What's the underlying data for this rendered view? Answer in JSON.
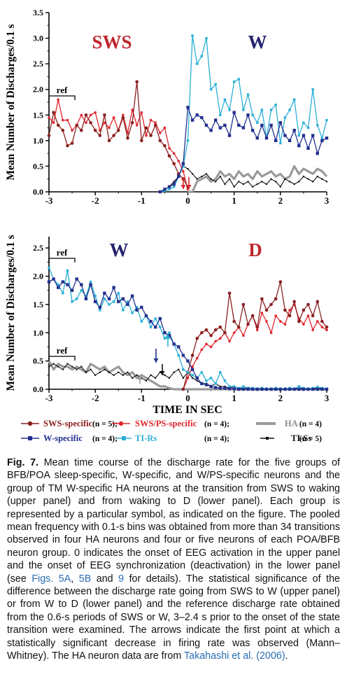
{
  "chart_data": [
    {
      "type": "line",
      "panel": "upper",
      "xlabel": "",
      "ylabel": "Mean Number of Discharges/0.1 s",
      "xlim": [
        -3,
        3
      ],
      "ylim": [
        0,
        3.5
      ],
      "x_ticks": [
        "-3",
        "-2",
        "-1",
        "0",
        "1",
        "2",
        "3"
      ],
      "y_ticks": [
        "0.0",
        "0.5",
        "1.0",
        "1.5",
        "2.0",
        "2.5",
        "3.0",
        "3.5"
      ],
      "state_labels": [
        {
          "text": "SWS",
          "color": "#c0272d"
        },
        {
          "text": "W",
          "color": "#24246e"
        }
      ],
      "ref_label": "ref",
      "x": [
        -3.0,
        -2.9,
        -2.8,
        -2.7,
        -2.6,
        -2.5,
        -2.4,
        -2.3,
        -2.2,
        -2.1,
        -2.0,
        -1.9,
        -1.8,
        -1.7,
        -1.6,
        -1.5,
        -1.4,
        -1.3,
        -1.2,
        -1.1,
        -1.0,
        -0.9,
        -0.8,
        -0.7,
        -0.6,
        -0.5,
        -0.4,
        -0.3,
        -0.2,
        -0.1,
        0.0,
        0.1,
        0.2,
        0.3,
        0.4,
        0.5,
        0.6,
        0.7,
        0.8,
        0.9,
        1.0,
        1.1,
        1.2,
        1.3,
        1.4,
        1.5,
        1.6,
        1.7,
        1.8,
        1.9,
        2.0,
        2.1,
        2.2,
        2.3,
        2.4,
        2.5,
        2.6,
        2.7,
        2.8,
        2.9,
        3.0
      ],
      "series": [
        {
          "name": "SWS-specific",
          "color": "#8b2020",
          "values": [
            1.1,
            1.55,
            1.3,
            1.2,
            0.9,
            0.95,
            1.3,
            1.2,
            1.5,
            1.35,
            1.2,
            1.1,
            1.5,
            1.0,
            1.1,
            1.2,
            1.45,
            1.05,
            1.35,
            2.15,
            1.0,
            1.25,
            1.1,
            1.3,
            1.0,
            0.9,
            0.7,
            0.55,
            0.35,
            0.25,
            0.1,
            null,
            null,
            null,
            null,
            null,
            null,
            null,
            null,
            null,
            null,
            null,
            null,
            null,
            null,
            null,
            null,
            null,
            null,
            null,
            null,
            null,
            null,
            null,
            null,
            null,
            null,
            null,
            null,
            null,
            null
          ]
        },
        {
          "name": "SWS/PS-specific",
          "color": "#e0262e",
          "values": [
            1.45,
            1.35,
            1.8,
            1.4,
            1.4,
            1.2,
            1.3,
            1.5,
            1.35,
            1.5,
            1.55,
            1.2,
            1.35,
            1.25,
            1.45,
            1.2,
            1.5,
            1.15,
            1.6,
            1.3,
            1.55,
            1.1,
            1.4,
            1.35,
            1.15,
            1.25,
            0.85,
            0.75,
            0.6,
            0.4,
            0.05,
            null,
            null,
            null,
            null,
            null,
            null,
            null,
            null,
            null,
            null,
            null,
            null,
            null,
            null,
            null,
            null,
            null,
            null,
            null,
            null,
            null,
            null,
            null,
            null,
            null,
            null,
            null,
            null,
            null,
            null
          ]
        },
        {
          "name": "W-specific",
          "color": "#23318f",
          "values": [
            null,
            null,
            null,
            null,
            null,
            null,
            null,
            null,
            null,
            null,
            null,
            null,
            null,
            null,
            null,
            null,
            null,
            null,
            null,
            null,
            null,
            null,
            null,
            null,
            0.0,
            0.05,
            0.1,
            0.15,
            0.3,
            0.55,
            1.65,
            1.4,
            1.5,
            1.45,
            1.3,
            1.2,
            1.4,
            1.25,
            1.3,
            1.1,
            1.55,
            1.3,
            1.25,
            1.5,
            1.2,
            1.05,
            1.3,
            1.05,
            1.3,
            1.0,
            1.35,
            1.1,
            1.0,
            1.2,
            0.9,
            1.1,
            0.85,
            1.1,
            0.75,
            1.0,
            1.05
          ]
        },
        {
          "name": "TI-Rs",
          "color": "#2ab0d6",
          "values": [
            null,
            null,
            null,
            null,
            null,
            null,
            null,
            null,
            null,
            null,
            null,
            null,
            null,
            null,
            null,
            null,
            null,
            null,
            null,
            null,
            null,
            null,
            null,
            null,
            0.0,
            0.02,
            0.05,
            0.1,
            0.3,
            0.5,
            1.0,
            3.05,
            2.5,
            2.65,
            3.0,
            2.0,
            2.1,
            1.5,
            1.8,
            1.6,
            2.15,
            2.2,
            1.6,
            1.9,
            1.5,
            1.35,
            1.6,
            1.05,
            1.6,
            1.7,
            0.95,
            1.45,
            1.6,
            1.8,
            1.1,
            1.35,
            1.25,
            2.0,
            1.3,
            1.05,
            1.4
          ]
        },
        {
          "name": "HA",
          "color": "#9a9a9a",
          "values": [
            null,
            null,
            null,
            null,
            null,
            null,
            null,
            null,
            null,
            null,
            null,
            null,
            null,
            null,
            null,
            null,
            null,
            null,
            null,
            null,
            null,
            null,
            null,
            null,
            null,
            null,
            null,
            null,
            null,
            null,
            0.0,
            0.0,
            0.2,
            0.25,
            0.3,
            0.2,
            0.25,
            0.4,
            0.3,
            0.35,
            0.25,
            0.4,
            0.3,
            0.35,
            0.25,
            0.4,
            0.3,
            0.35,
            0.4,
            0.3,
            0.35,
            0.25,
            0.3,
            0.5,
            0.35,
            0.45,
            0.4,
            0.35,
            0.45,
            0.4,
            0.3
          ]
        },
        {
          "name": "TI-Ss",
          "color": "#111111",
          "values": [
            null,
            null,
            null,
            null,
            null,
            null,
            null,
            null,
            null,
            null,
            null,
            null,
            null,
            null,
            null,
            null,
            null,
            null,
            null,
            null,
            null,
            null,
            null,
            null,
            0.0,
            0.05,
            0.1,
            0.2,
            0.3,
            0.5,
            0.45,
            0.35,
            0.25,
            0.3,
            0.35,
            0.25,
            0.2,
            0.3,
            0.15,
            0.25,
            0.1,
            0.2,
            0.15,
            0.2,
            0.1,
            0.15,
            0.2,
            0.15,
            0.25,
            0.2,
            0.1,
            0.25,
            0.2,
            0.15,
            0.2,
            0.3,
            0.25,
            0.2,
            0.3,
            0.25,
            0.2
          ]
        }
      ]
    },
    {
      "type": "line",
      "panel": "lower",
      "xlabel": "TIME IN SEC",
      "ylabel": "Mean Number of Discharges/0.1 s",
      "xlim": [
        -3,
        3
      ],
      "ylim": [
        0,
        2.7
      ],
      "x_ticks": [
        "-3",
        "-2",
        "-1",
        "0",
        "1",
        "2",
        "3"
      ],
      "y_ticks": [
        "0.0",
        "0.5",
        "1.0",
        "1.5",
        "2.0",
        "2.5"
      ],
      "state_labels": [
        {
          "text": "W",
          "color": "#24246e"
        },
        {
          "text": "D",
          "color": "#c0272d"
        }
      ],
      "ref_label": "ref",
      "x": [
        -3.0,
        -2.9,
        -2.8,
        -2.7,
        -2.6,
        -2.5,
        -2.4,
        -2.3,
        -2.2,
        -2.1,
        -2.0,
        -1.9,
        -1.8,
        -1.7,
        -1.6,
        -1.5,
        -1.4,
        -1.3,
        -1.2,
        -1.1,
        -1.0,
        -0.9,
        -0.8,
        -0.7,
        -0.6,
        -0.5,
        -0.4,
        -0.3,
        -0.2,
        -0.1,
        0.0,
        0.1,
        0.2,
        0.3,
        0.4,
        0.5,
        0.6,
        0.7,
        0.8,
        0.9,
        1.0,
        1.1,
        1.2,
        1.3,
        1.4,
        1.5,
        1.6,
        1.7,
        1.8,
        1.9,
        2.0,
        2.1,
        2.2,
        2.3,
        2.4,
        2.5,
        2.6,
        2.7,
        2.8,
        2.9,
        3.0
      ],
      "series": [
        {
          "name": "SWS-specific",
          "color": "#8b2020",
          "values": [
            null,
            null,
            null,
            null,
            null,
            null,
            null,
            null,
            null,
            null,
            null,
            null,
            null,
            null,
            null,
            null,
            null,
            null,
            null,
            null,
            null,
            null,
            null,
            null,
            null,
            null,
            null,
            null,
            null,
            0.0,
            0.3,
            0.6,
            0.9,
            1.0,
            1.05,
            0.95,
            1.05,
            1.1,
            1.0,
            1.7,
            1.2,
            1.1,
            1.5,
            1.15,
            1.3,
            1.1,
            1.6,
            1.4,
            1.5,
            1.6,
            1.9,
            1.4,
            1.3,
            1.55,
            1.2,
            1.4,
            1.5,
            1.3,
            1.55,
            1.2,
            1.1
          ]
        },
        {
          "name": "SWS/PS-specific",
          "color": "#e0262e",
          "values": [
            null,
            null,
            null,
            null,
            null,
            null,
            null,
            null,
            null,
            null,
            null,
            null,
            null,
            null,
            null,
            null,
            null,
            null,
            null,
            null,
            null,
            null,
            null,
            null,
            null,
            null,
            null,
            null,
            null,
            0.0,
            0.2,
            0.4,
            0.55,
            0.7,
            0.8,
            0.75,
            0.85,
            0.9,
            1.0,
            0.85,
            1.0,
            1.1,
            0.95,
            1.15,
            1.3,
            1.05,
            1.35,
            1.2,
            1.0,
            1.3,
            1.2,
            1.15,
            1.4,
            1.5,
            1.25,
            1.15,
            1.3,
            1.05,
            1.2,
            1.1,
            1.05
          ]
        },
        {
          "name": "W-specific",
          "color": "#23318f",
          "values": [
            1.9,
            1.95,
            1.8,
            1.9,
            1.85,
            1.75,
            1.95,
            1.85,
            1.6,
            1.85,
            1.55,
            1.45,
            1.7,
            1.6,
            1.8,
            1.55,
            1.6,
            1.5,
            1.65,
            1.4,
            1.45,
            1.3,
            1.2,
            1.1,
            1.25,
            1.0,
            0.95,
            0.8,
            0.75,
            0.6,
            0.5,
            0.35,
            0.2,
            0.1,
            0.08,
            0.05,
            0.03,
            0.02,
            0.02,
            0.01,
            0.01,
            0.0,
            0.0,
            0.0,
            0.0,
            0.0,
            0.0,
            0.0,
            0.0,
            0.0,
            0.0,
            0.0,
            0.0,
            0.0,
            0.0,
            0.0,
            0.0,
            0.0,
            0.0,
            0.0,
            0.0
          ]
        },
        {
          "name": "TI-Rs",
          "color": "#2ab0d6",
          "values": [
            2.15,
            1.95,
            1.85,
            1.7,
            2.1,
            1.55,
            1.6,
            1.75,
            1.65,
            1.9,
            1.65,
            1.4,
            1.6,
            1.5,
            1.55,
            1.7,
            1.4,
            1.55,
            1.35,
            1.45,
            1.2,
            1.3,
            1.1,
            1.25,
            1.1,
            0.9,
            1.0,
            0.8,
            0.6,
            0.35,
            0.3,
            0.25,
            0.2,
            0.3,
            0.15,
            0.2,
            0.1,
            0.3,
            0.15,
            0.05,
            0.05,
            0.02,
            0.05,
            0.02,
            0.02,
            0.01,
            0.02,
            0.01,
            0.01,
            0.02,
            0.01,
            0.01,
            0.02,
            0.01,
            0.05,
            0.02,
            0.01,
            0.02,
            0.04,
            0.02,
            0.01
          ]
        },
        {
          "name": "HA",
          "color": "#9a9a9a",
          "values": [
            0.5,
            0.35,
            0.45,
            0.4,
            0.4,
            0.35,
            0.4,
            0.35,
            0.3,
            0.45,
            0.4,
            0.35,
            0.4,
            0.3,
            0.35,
            0.4,
            0.3,
            0.25,
            0.3,
            0.2,
            0.25,
            0.2,
            0.15,
            0.1,
            0.05,
            0.05,
            0.02,
            0.0,
            0.0,
            0.0,
            0.0,
            0.0,
            0.0,
            0.0,
            0.0,
            0.0,
            0.0,
            0.0,
            0.0,
            0.0,
            0.0,
            0.0,
            0.0,
            0.0,
            0.0,
            0.0,
            0.0,
            0.0,
            0.0,
            0.0,
            0.0,
            0.0,
            0.0,
            0.0,
            0.0,
            0.0,
            0.0,
            0.0,
            0.0,
            0.0,
            0.0
          ]
        },
        {
          "name": "TI-Ss",
          "color": "#111111",
          "values": [
            0.4,
            0.45,
            0.4,
            0.35,
            0.45,
            0.4,
            0.35,
            0.4,
            0.3,
            0.35,
            0.25,
            0.3,
            0.35,
            0.3,
            0.25,
            0.3,
            0.25,
            0.3,
            0.2,
            0.25,
            0.2,
            0.15,
            0.25,
            0.2,
            0.3,
            0.25,
            0.2,
            0.3,
            0.35,
            0.2,
            0.3,
            0.2,
            0.15,
            0.1,
            0.1,
            0.05,
            0.1,
            0.05,
            0.05,
            0.02,
            0.05,
            0.02,
            0.01,
            0.03,
            0.02,
            0.01,
            0.02,
            0.01,
            0.01,
            0.02,
            0.01,
            0.01,
            0.02,
            0.01,
            0.01,
            0.02,
            0.01,
            0.01,
            0.02,
            0.01,
            0.01
          ]
        }
      ]
    }
  ],
  "legend": [
    {
      "name": "SWS-specific",
      "n": "(n = 5);",
      "color": "#8b2020",
      "marker": "circle"
    },
    {
      "name": "SWS/PS-specific",
      "n": "(n = 4);",
      "color": "#e0262e",
      "marker": "circle"
    },
    {
      "name": "HA",
      "n": "(n = 4)",
      "color": "#9a9a9a",
      "marker": "none"
    },
    {
      "name": "W-specific",
      "n": "(n = 4);",
      "color": "#23318f",
      "marker": "square"
    },
    {
      "name": "TI-Rs",
      "n": "(n = 4);",
      "color": "#2ab0d6",
      "marker": "square"
    },
    {
      "name": "TI-Ss",
      "n": "(n = 5)",
      "color": "#111111",
      "marker": "small"
    }
  ],
  "caption": {
    "label": "Fig. 7.",
    "p1": " Mean time course of the discharge rate for the five groups of BFB/POA sleep-specific, W-specific, and W/PS-specific neurons and the group of TM W-specific HA neurons at the transition from SWS to waking (upper panel) and from waking to D (lower panel). Each group is represented by a particular symbol, as indicated on the figure. The pooled mean frequency with 0.1-s bins was obtained from more than 34 transitions observed in four HA neurons and four or five neurons of each POA/BFB neuron group. 0 indicates the onset of EEG activation in the upper panel and the onset of EEG synchronization (deactivation) in the lower panel (see ",
    "link1": "Figs. 5A",
    "sep1": ", ",
    "link2": "5B",
    "sep2": " and ",
    "link3": "9",
    "p2": " for details). The statistical significance of the difference between the discharge rate going from SWS to W (upper panel) or from W to D (lower panel) and the reference discharge rate obtained from the 0.6-s periods of SWS or W, 3–2.4 s prior to the onset of the state transition were examined. The arrows indicate the first point at which a statistically significant decrease in firing rate was observed (Mann–Whitney). The HA neuron data are from ",
    "link4": "Takahashi et al. (2006)",
    "p3": "."
  }
}
